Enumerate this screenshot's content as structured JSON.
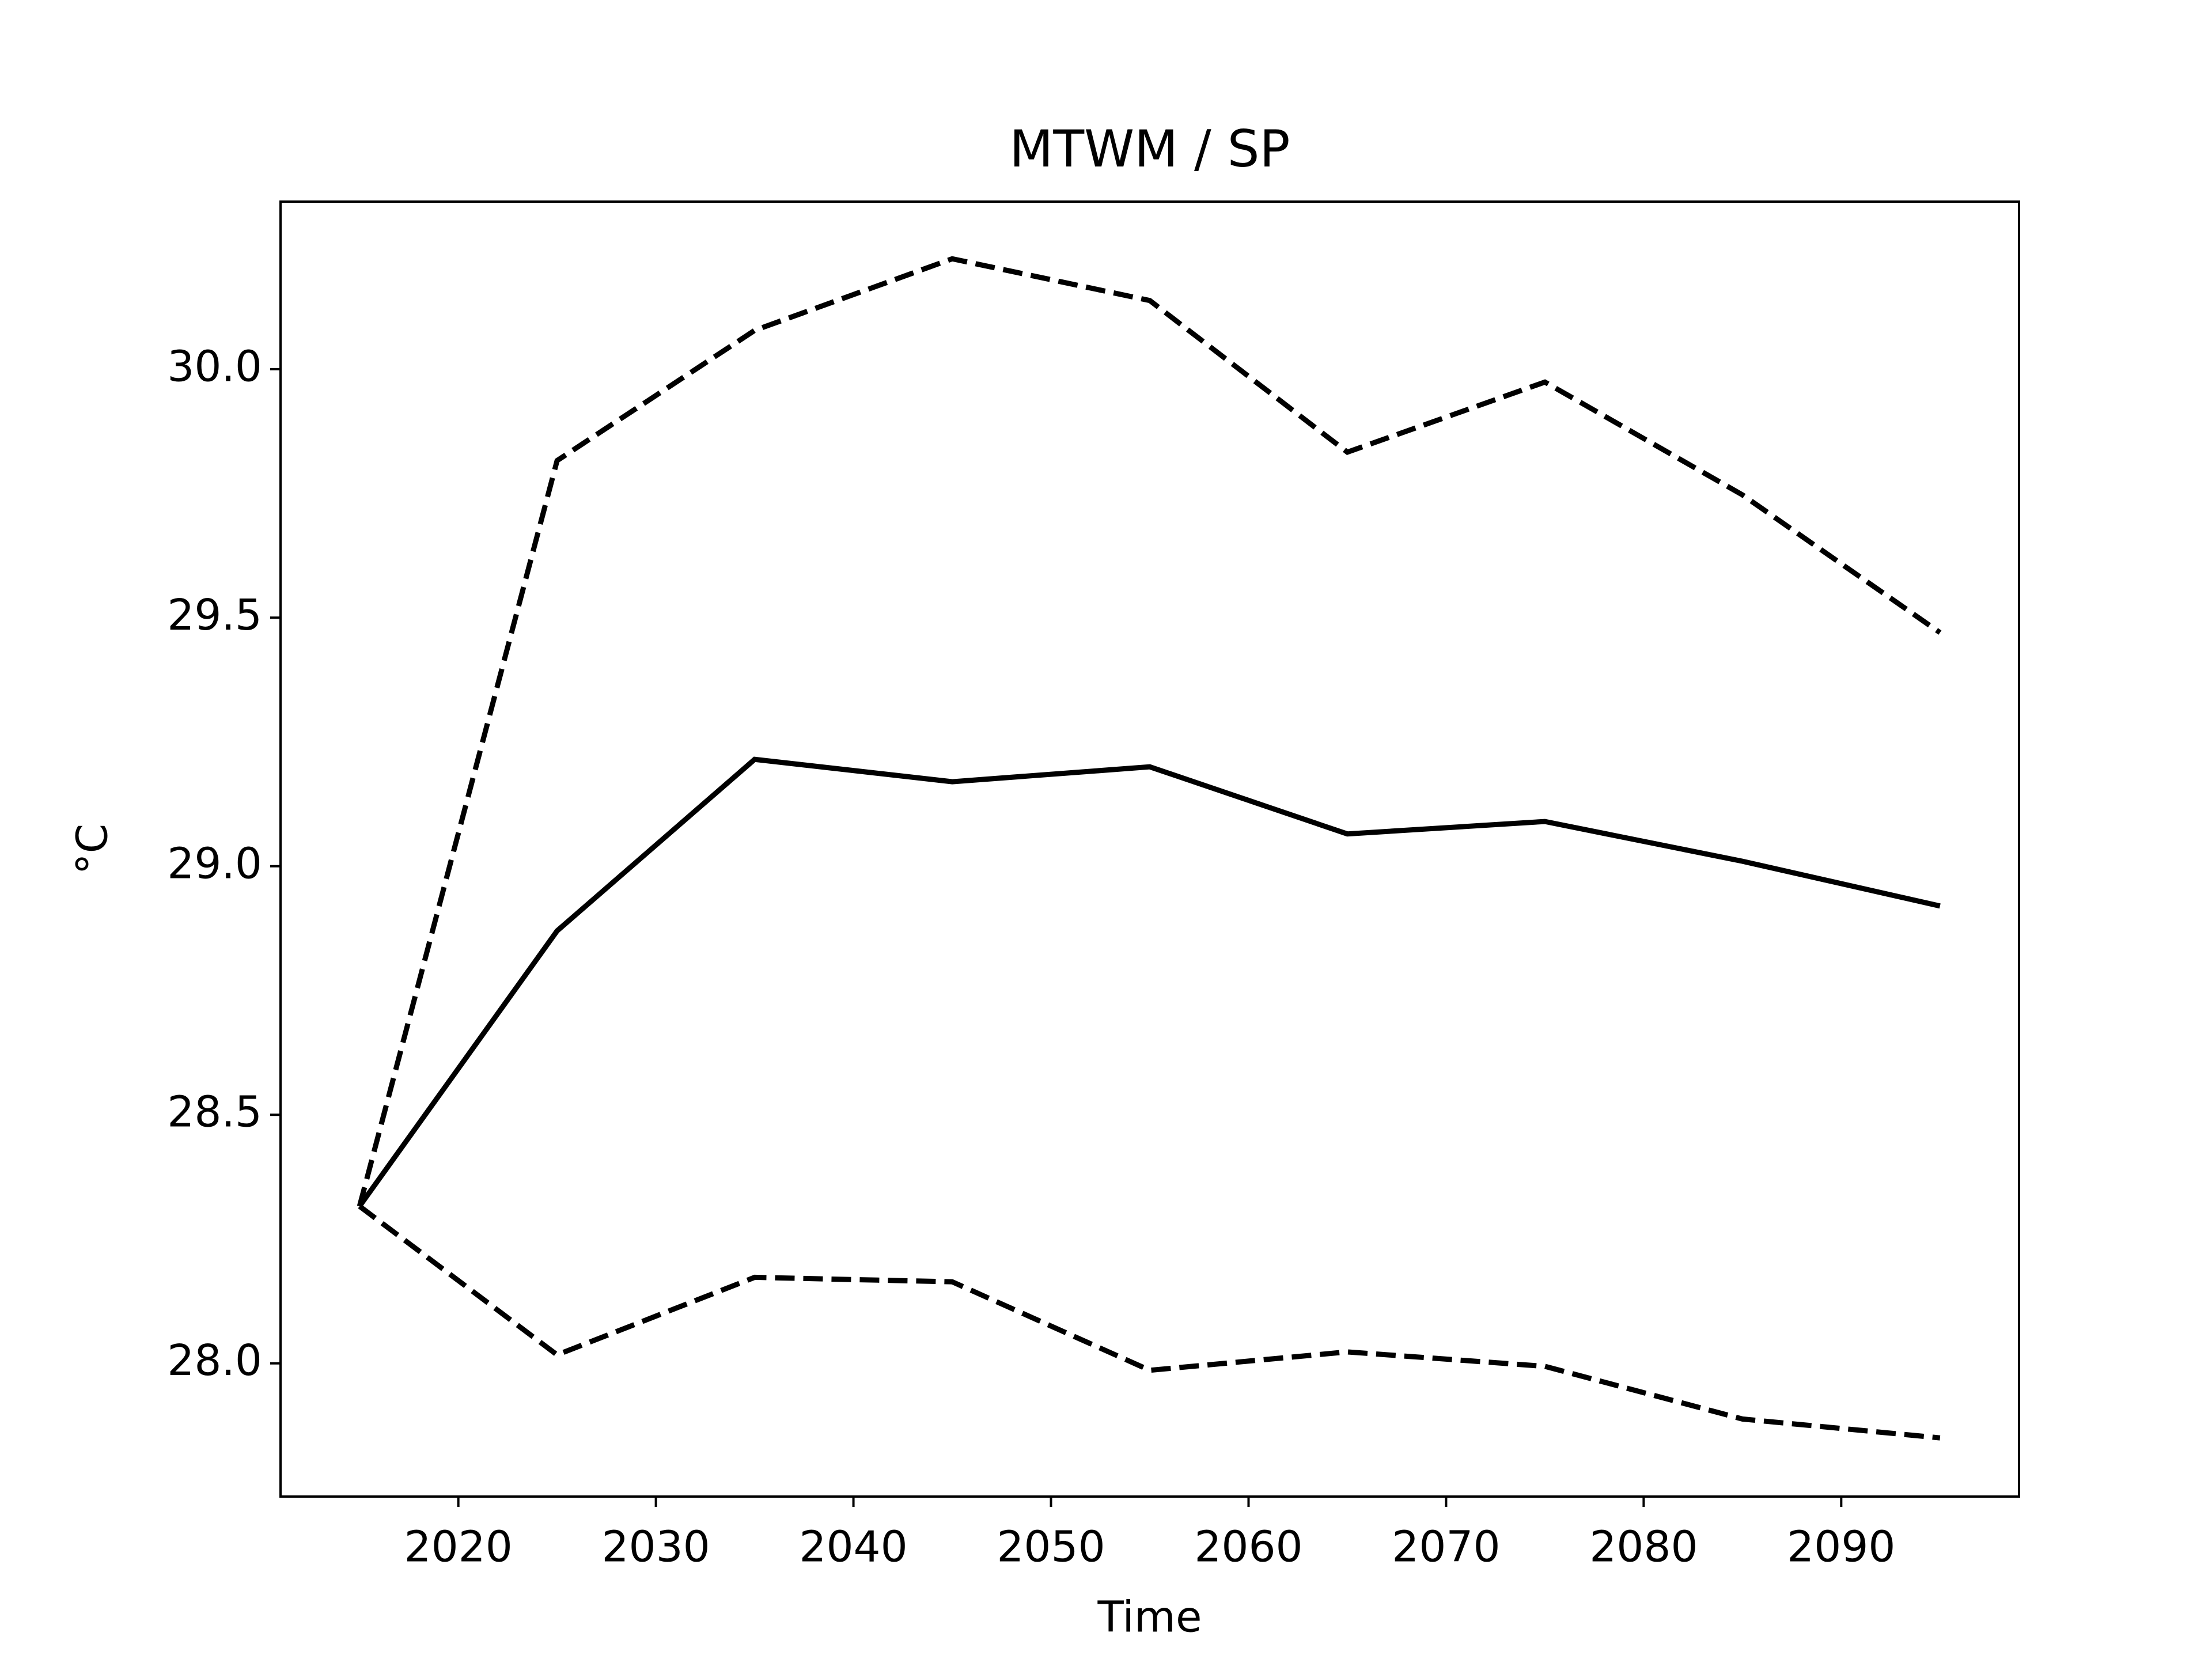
{
  "chart_data": {
    "type": "line",
    "title": "MTWM / SP",
    "x_label": "Time",
    "y_label": "°C",
    "x": [
      2015,
      2025,
      2035,
      2045,
      2055,
      2065,
      2075,
      2085,
      2095
    ],
    "series": [
      {
        "color": "#000000",
        "linestyle": "solid",
        "values": [
          28.316,
          28.87,
          29.215,
          29.17,
          29.2,
          29.065,
          29.09,
          29.01,
          28.92
        ]
      },
      {
        "color": "#000000",
        "linestyle": "dashed",
        "values": [
          28.316,
          29.816,
          30.078,
          30.222,
          30.138,
          29.833,
          29.974,
          29.747,
          29.47
        ]
      },
      {
        "color": "#000000",
        "linestyle": "dashed",
        "values": [
          28.316,
          28.017,
          28.173,
          28.164,
          27.986,
          28.023,
          27.994,
          27.888,
          27.85
        ]
      }
    ],
    "xlim": [
      2011,
      2099
    ],
    "xticks": [
      2020,
      2030,
      2040,
      2050,
      2060,
      2070,
      2080,
      2090
    ],
    "ylim": [
      27.732,
      30.337
    ],
    "yticks": [
      {
        "value": 28,
        "label": "28.0"
      },
      28.5,
      {
        "value": 29,
        "label": "29.0"
      },
      29.5,
      {
        "value": 30,
        "label": "30.0"
      }
    ],
    "grid": false
  }
}
